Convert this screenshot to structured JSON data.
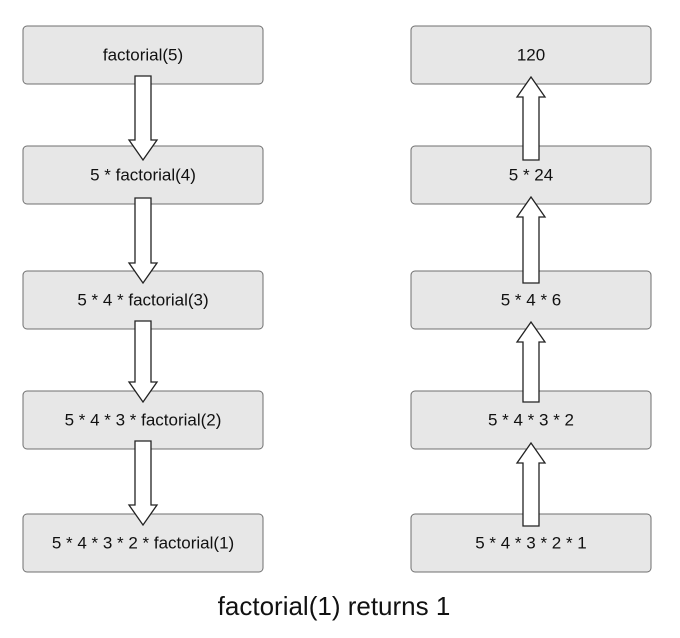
{
  "left_column": {
    "boxes": [
      "factorial(5)",
      "5 * factorial(4)",
      "5 * 4 * factorial(3)",
      "5 * 4 * 3 * factorial(2)",
      "5 * 4 * 3 * 2 * factorial(1)"
    ]
  },
  "right_column": {
    "boxes": [
      "120",
      "5 * 24",
      "5 * 4 * 6",
      "5 * 4 * 3 * 2",
      "5 * 4 * 3 * 2 * 1"
    ]
  },
  "caption": "factorial(1) returns 1",
  "colors": {
    "box_fill": "#e7e7e7",
    "box_stroke": "#6f6f6f",
    "arrow_fill": "#ffffff",
    "arrow_stroke": "#222222",
    "text": "#111111"
  }
}
